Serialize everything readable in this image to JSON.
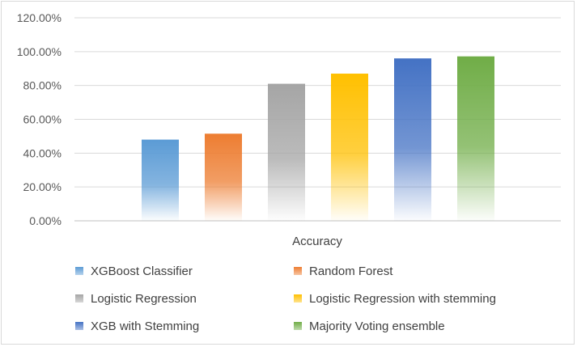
{
  "chart_data": {
    "type": "bar",
    "categories": [
      "Accuracy"
    ],
    "series": [
      {
        "name": "XGBoost Classifier",
        "values": [
          0.48
        ],
        "color": "#5b9bd5"
      },
      {
        "name": "Random Forest",
        "values": [
          0.515
        ],
        "color": "#ed7d31"
      },
      {
        "name": "Logistic Regression",
        "values": [
          0.81
        ],
        "color": "#a5a5a5"
      },
      {
        "name": "Logistic Regression with stemming",
        "values": [
          0.87
        ],
        "color": "#ffc000"
      },
      {
        "name": "XGB with Stemming",
        "values": [
          0.96
        ],
        "color": "#4472c4"
      },
      {
        "name": "Majority Voting ensemble",
        "values": [
          0.972
        ],
        "color": "#70ad47"
      }
    ],
    "y_ticks": [
      "0.00%",
      "20.00%",
      "40.00%",
      "60.00%",
      "80.00%",
      "100.00%",
      "120.00%"
    ],
    "ylim": [
      0,
      1.2
    ],
    "grid": true,
    "legend": "bottom",
    "gradient_fill": true
  }
}
